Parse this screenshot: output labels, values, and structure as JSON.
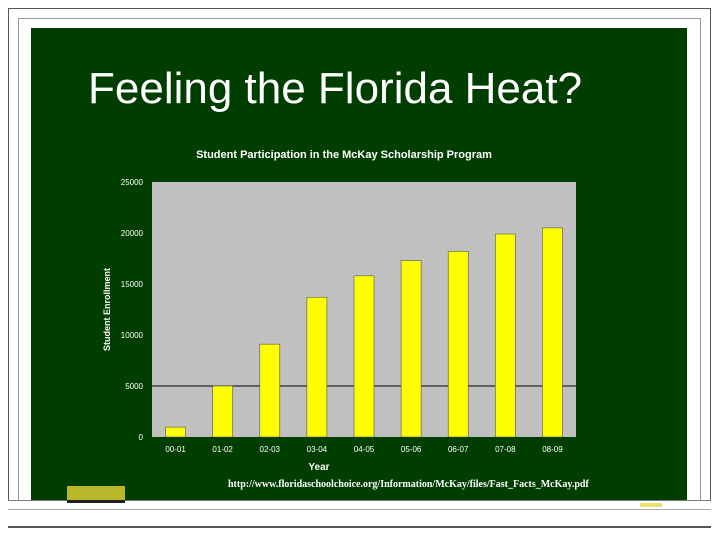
{
  "slide": {
    "title": "Feeling the Florida Heat?",
    "source_url": "http://www.floridaschoolchoice.org/Information/McKay/files/Fast_Facts_McKay.pdf"
  },
  "colors": {
    "board": "#003e00",
    "plot_bg": "#c0c0c0",
    "bar": "#ffff00",
    "text": "#ffffff"
  },
  "chart_data": {
    "type": "bar",
    "title": "Student Participation in the McKay Scholarship Program",
    "xlabel": "Year",
    "ylabel": "Student Enrollment",
    "categories": [
      "00-01",
      "01-02",
      "02-03",
      "03-04",
      "04-05",
      "05-06",
      "06-07",
      "07-08",
      "08-09"
    ],
    "values": [
      970,
      5000,
      9100,
      13700,
      15800,
      17300,
      18200,
      19900,
      20500
    ],
    "ylim": [
      0,
      25000
    ],
    "yticks": [
      "0",
      "5000",
      "10000",
      "15000",
      "20000",
      "25000"
    ],
    "grid": "horizontal line at 5000"
  }
}
